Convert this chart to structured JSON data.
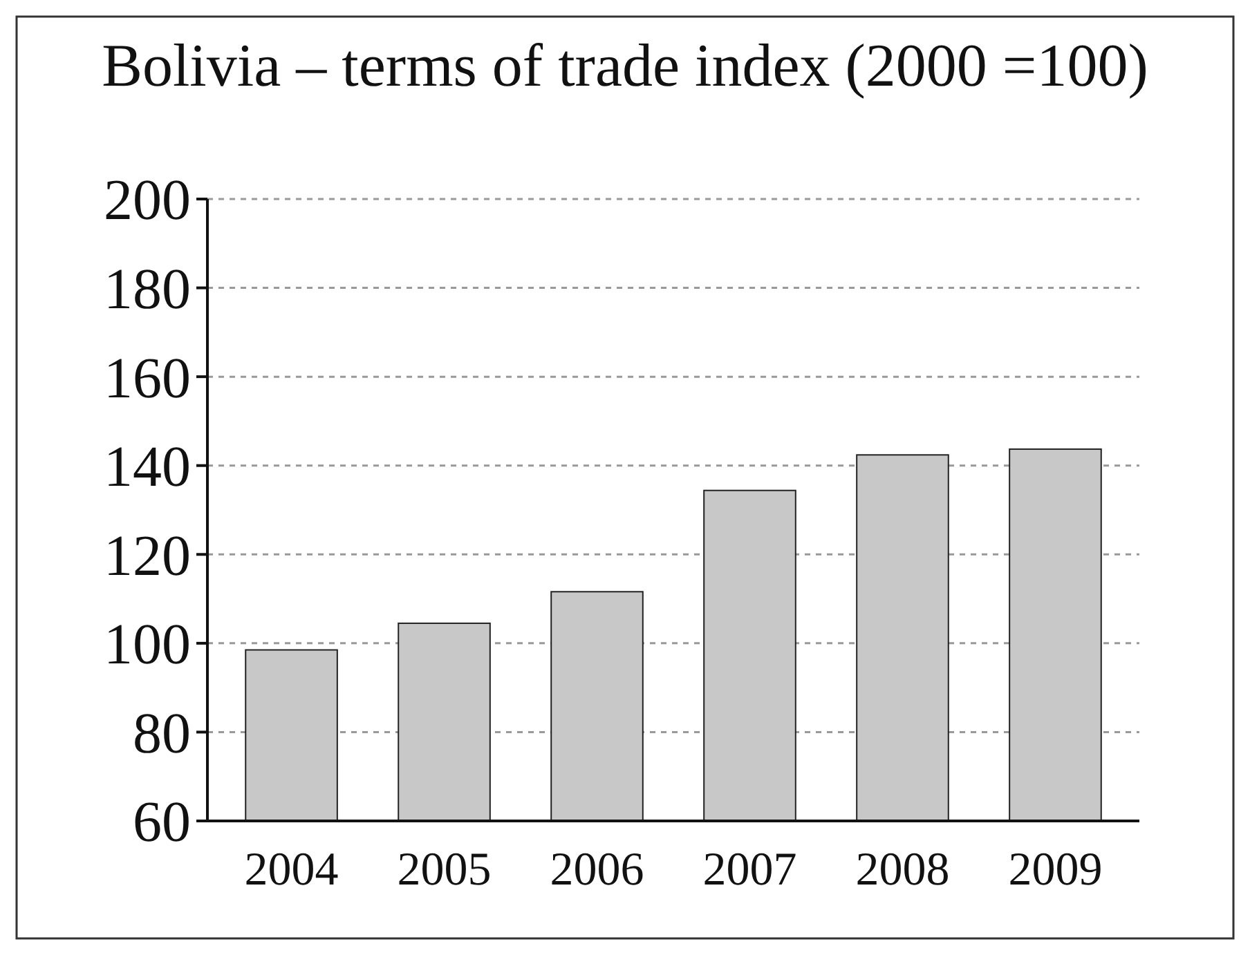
{
  "chart_data": {
    "type": "bar",
    "title": "Bolivia – terms of trade index (2000 =100)",
    "categories": [
      "2004",
      "2005",
      "2006",
      "2007",
      "2008",
      "2009"
    ],
    "values": [
      98.5,
      104.5,
      111.6,
      134.4,
      142.4,
      143.7
    ],
    "color": "#c8c8c8",
    "ylim": [
      60,
      200
    ],
    "yticks": [
      60,
      80,
      100,
      120,
      140,
      160,
      180,
      200
    ],
    "grid": "y"
  }
}
